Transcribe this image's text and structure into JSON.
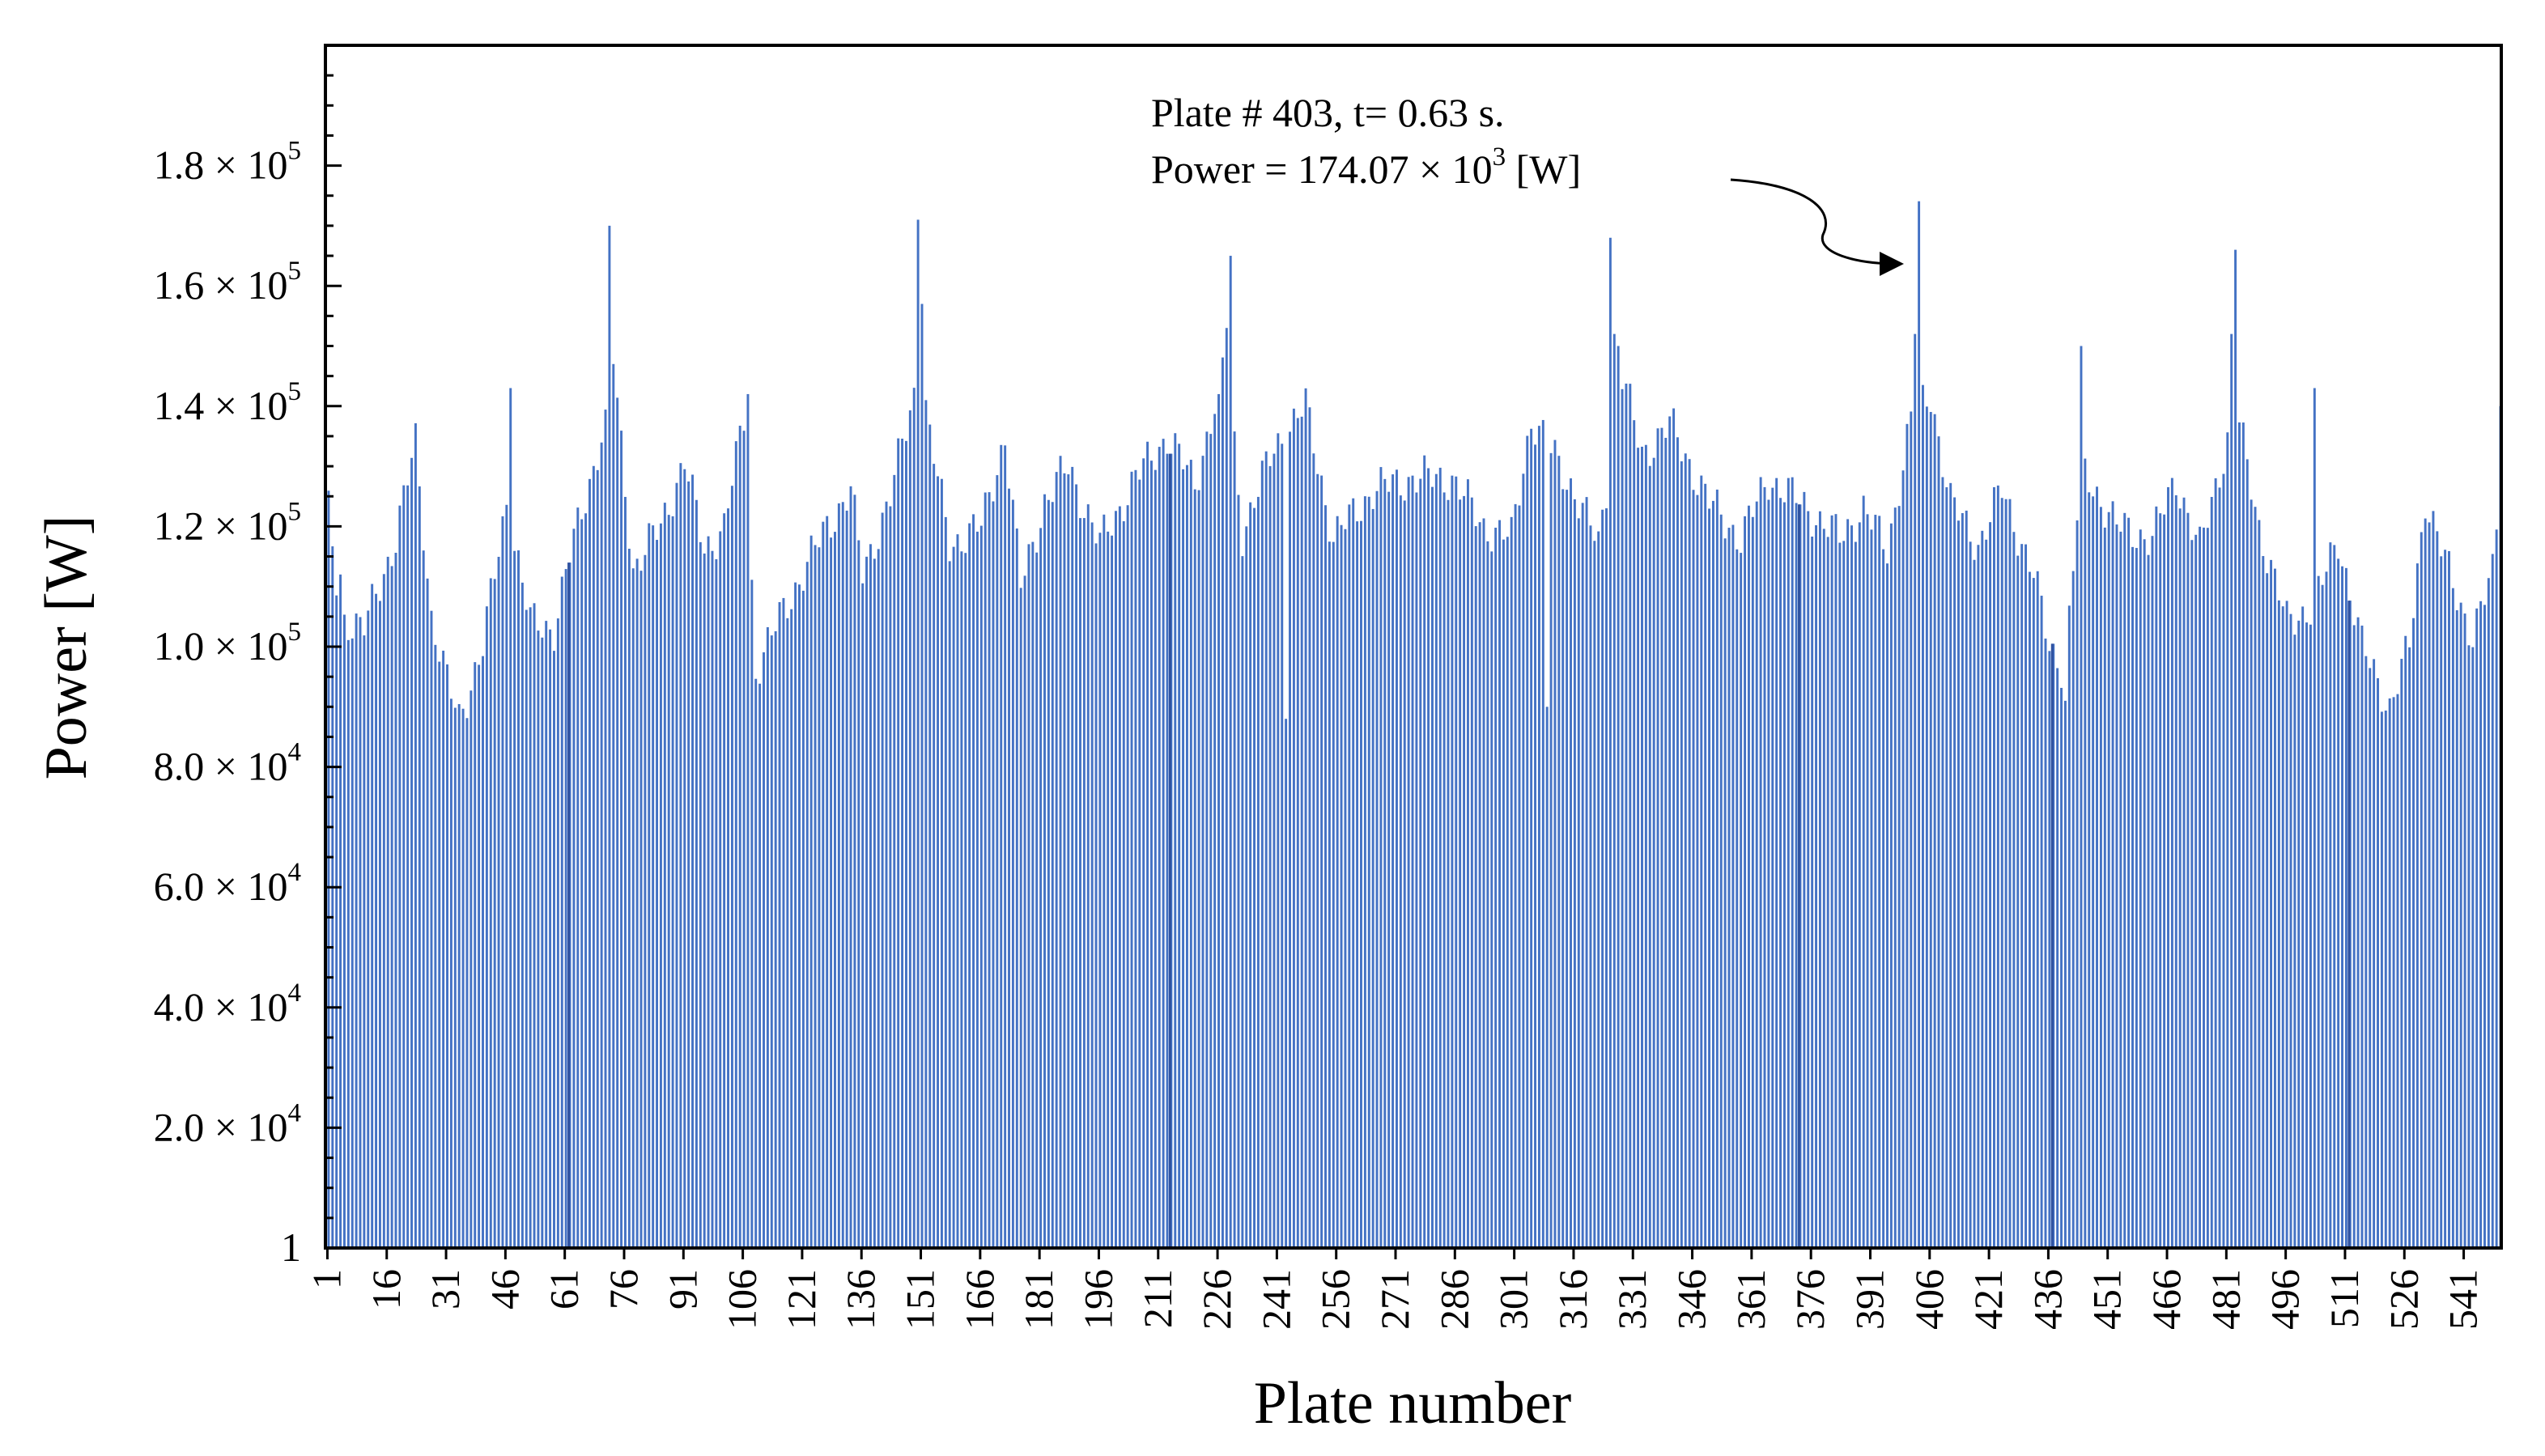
{
  "chart_data": {
    "type": "bar",
    "title": "",
    "xlabel": "Plate number",
    "ylabel": "Power  [W]",
    "ylim": [
      0,
      200000
    ],
    "grid": false,
    "legend": "none",
    "bar_color": "#4472c4",
    "y_tick_labels": [
      {
        "value": 0,
        "mantissa": "1",
        "exp": ""
      },
      {
        "value": 20000,
        "mantissa": "2.0 × 10",
        "exp": "4"
      },
      {
        "value": 40000,
        "mantissa": "4.0 × 10",
        "exp": "4"
      },
      {
        "value": 60000,
        "mantissa": "6.0 × 10",
        "exp": "4"
      },
      {
        "value": 80000,
        "mantissa": "8.0 × 10",
        "exp": "4"
      },
      {
        "value": 100000,
        "mantissa": "1.0 × 10",
        "exp": "5"
      },
      {
        "value": 120000,
        "mantissa": "1.2 × 10",
        "exp": "5"
      },
      {
        "value": 140000,
        "mantissa": "1.4 × 10",
        "exp": "5"
      },
      {
        "value": 160000,
        "mantissa": "1.6 × 10",
        "exp": "5"
      },
      {
        "value": 180000,
        "mantissa": "1.8 × 10",
        "exp": "5"
      }
    ],
    "x_tick_labels": [
      "1",
      "16",
      "31",
      "46",
      "61",
      "76",
      "91",
      "106",
      "121",
      "136",
      "151",
      "166",
      "181",
      "196",
      "211",
      "226",
      "241",
      "256",
      "271",
      "286",
      "301",
      "316",
      "331",
      "346",
      "361",
      "376",
      "391",
      "406",
      "421",
      "436",
      "451",
      "466",
      "481",
      "496",
      "511",
      "526",
      "541"
    ],
    "profile_keypoints": [
      {
        "plate": 1,
        "power": 122000
      },
      {
        "plate": 4,
        "power": 105000
      },
      {
        "plate": 10,
        "power": 103000
      },
      {
        "plate": 18,
        "power": 118000
      },
      {
        "plate": 23,
        "power": 134000
      },
      {
        "plate": 27,
        "power": 105000
      },
      {
        "plate": 31,
        "power": 94000
      },
      {
        "plate": 34,
        "power": 88000
      },
      {
        "plate": 40,
        "power": 100000
      },
      {
        "plate": 46,
        "power": 124000
      },
      {
        "plate": 52,
        "power": 104000
      },
      {
        "plate": 58,
        "power": 103000
      },
      {
        "plate": 62,
        "power": 115000
      },
      {
        "plate": 70,
        "power": 135000
      },
      {
        "plate": 74,
        "power": 140000
      },
      {
        "plate": 78,
        "power": 113000
      },
      {
        "plate": 85,
        "power": 120000
      },
      {
        "plate": 91,
        "power": 131000
      },
      {
        "plate": 96,
        "power": 116000
      },
      {
        "plate": 101,
        "power": 120000
      },
      {
        "plate": 106,
        "power": 138000
      },
      {
        "plate": 109,
        "power": 96000
      },
      {
        "plate": 116,
        "power": 106000
      },
      {
        "plate": 127,
        "power": 120000
      },
      {
        "plate": 133,
        "power": 126000
      },
      {
        "plate": 136,
        "power": 112000
      },
      {
        "plate": 143,
        "power": 125000
      },
      {
        "plate": 149,
        "power": 142000
      },
      {
        "plate": 153,
        "power": 135000
      },
      {
        "plate": 158,
        "power": 117000
      },
      {
        "plate": 166,
        "power": 120000
      },
      {
        "plate": 172,
        "power": 135000
      },
      {
        "plate": 176,
        "power": 110000
      },
      {
        "plate": 182,
        "power": 124000
      },
      {
        "plate": 188,
        "power": 130000
      },
      {
        "plate": 196,
        "power": 117000
      },
      {
        "plate": 205,
        "power": 128000
      },
      {
        "plate": 213,
        "power": 135000
      },
      {
        "plate": 220,
        "power": 127000
      },
      {
        "plate": 228,
        "power": 148000
      },
      {
        "plate": 232,
        "power": 119000
      },
      {
        "plate": 240,
        "power": 133000
      },
      {
        "plate": 248,
        "power": 140000
      },
      {
        "plate": 255,
        "power": 118000
      },
      {
        "plate": 265,
        "power": 126000
      },
      {
        "plate": 275,
        "power": 128000
      },
      {
        "plate": 285,
        "power": 128000
      },
      {
        "plate": 293,
        "power": 120000
      },
      {
        "plate": 300,
        "power": 118000
      },
      {
        "plate": 305,
        "power": 138000
      },
      {
        "plate": 315,
        "power": 127000
      },
      {
        "plate": 322,
        "power": 117000
      },
      {
        "plate": 328,
        "power": 145000
      },
      {
        "plate": 333,
        "power": 132000
      },
      {
        "plate": 340,
        "power": 137000
      },
      {
        "plate": 350,
        "power": 124000
      },
      {
        "plate": 358,
        "power": 118000
      },
      {
        "plate": 365,
        "power": 128000
      },
      {
        "plate": 373,
        "power": 124000
      },
      {
        "plate": 383,
        "power": 118000
      },
      {
        "plate": 389,
        "power": 123000
      },
      {
        "plate": 395,
        "power": 116000
      },
      {
        "plate": 401,
        "power": 138000
      },
      {
        "plate": 406,
        "power": 142000
      },
      {
        "plate": 411,
        "power": 124000
      },
      {
        "plate": 418,
        "power": 117000
      },
      {
        "plate": 424,
        "power": 126000
      },
      {
        "plate": 432,
        "power": 112000
      },
      {
        "plate": 436,
        "power": 100000
      },
      {
        "plate": 440,
        "power": 96000
      },
      {
        "plate": 444,
        "power": 130000
      },
      {
        "plate": 453,
        "power": 120000
      },
      {
        "plate": 462,
        "power": 118000
      },
      {
        "plate": 468,
        "power": 128000
      },
      {
        "plate": 474,
        "power": 116000
      },
      {
        "plate": 483,
        "power": 140000
      },
      {
        "plate": 489,
        "power": 120000
      },
      {
        "plate": 496,
        "power": 104000
      },
      {
        "plate": 503,
        "power": 107000
      },
      {
        "plate": 509,
        "power": 118000
      },
      {
        "plate": 515,
        "power": 100000
      },
      {
        "plate": 522,
        "power": 90000
      },
      {
        "plate": 527,
        "power": 100000
      },
      {
        "plate": 531,
        "power": 125000
      },
      {
        "plate": 538,
        "power": 110000
      },
      {
        "plate": 543,
        "power": 102000
      },
      {
        "plate": 548,
        "power": 112000
      },
      {
        "plate": 550,
        "power": 128000
      }
    ],
    "spikes": [
      {
        "plate": 4,
        "power": 112000
      },
      {
        "plate": 72,
        "power": 170000
      },
      {
        "plate": 73,
        "power": 147000
      },
      {
        "plate": 47,
        "power": 143000
      },
      {
        "plate": 107,
        "power": 142000
      },
      {
        "plate": 150,
        "power": 171000
      },
      {
        "plate": 151,
        "power": 157000
      },
      {
        "plate": 152,
        "power": 141000
      },
      {
        "plate": 228,
        "power": 153000
      },
      {
        "plate": 229,
        "power": 165000
      },
      {
        "plate": 226,
        "power": 142000
      },
      {
        "plate": 243,
        "power": 88000
      },
      {
        "plate": 309,
        "power": 90000
      },
      {
        "plate": 325,
        "power": 168000
      },
      {
        "plate": 326,
        "power": 152000
      },
      {
        "plate": 327,
        "power": 150000
      },
      {
        "plate": 403,
        "power": 174070
      },
      {
        "plate": 402,
        "power": 152000
      },
      {
        "plate": 440,
        "power": 91000
      },
      {
        "plate": 444,
        "power": 150000
      },
      {
        "plate": 482,
        "power": 152000
      },
      {
        "plate": 483,
        "power": 166000
      },
      {
        "plate": 503,
        "power": 143000
      },
      {
        "plate": 550,
        "power": 140000
      }
    ],
    "n_plates": 550,
    "annotation": {
      "line1": "Plate # 403,  t= 0.63 s.",
      "line2_prefix": "Power = 174.07  ×  10",
      "line2_exp": "3",
      "line2_suffix": " [W]",
      "plate": 403,
      "value": 174070
    }
  }
}
